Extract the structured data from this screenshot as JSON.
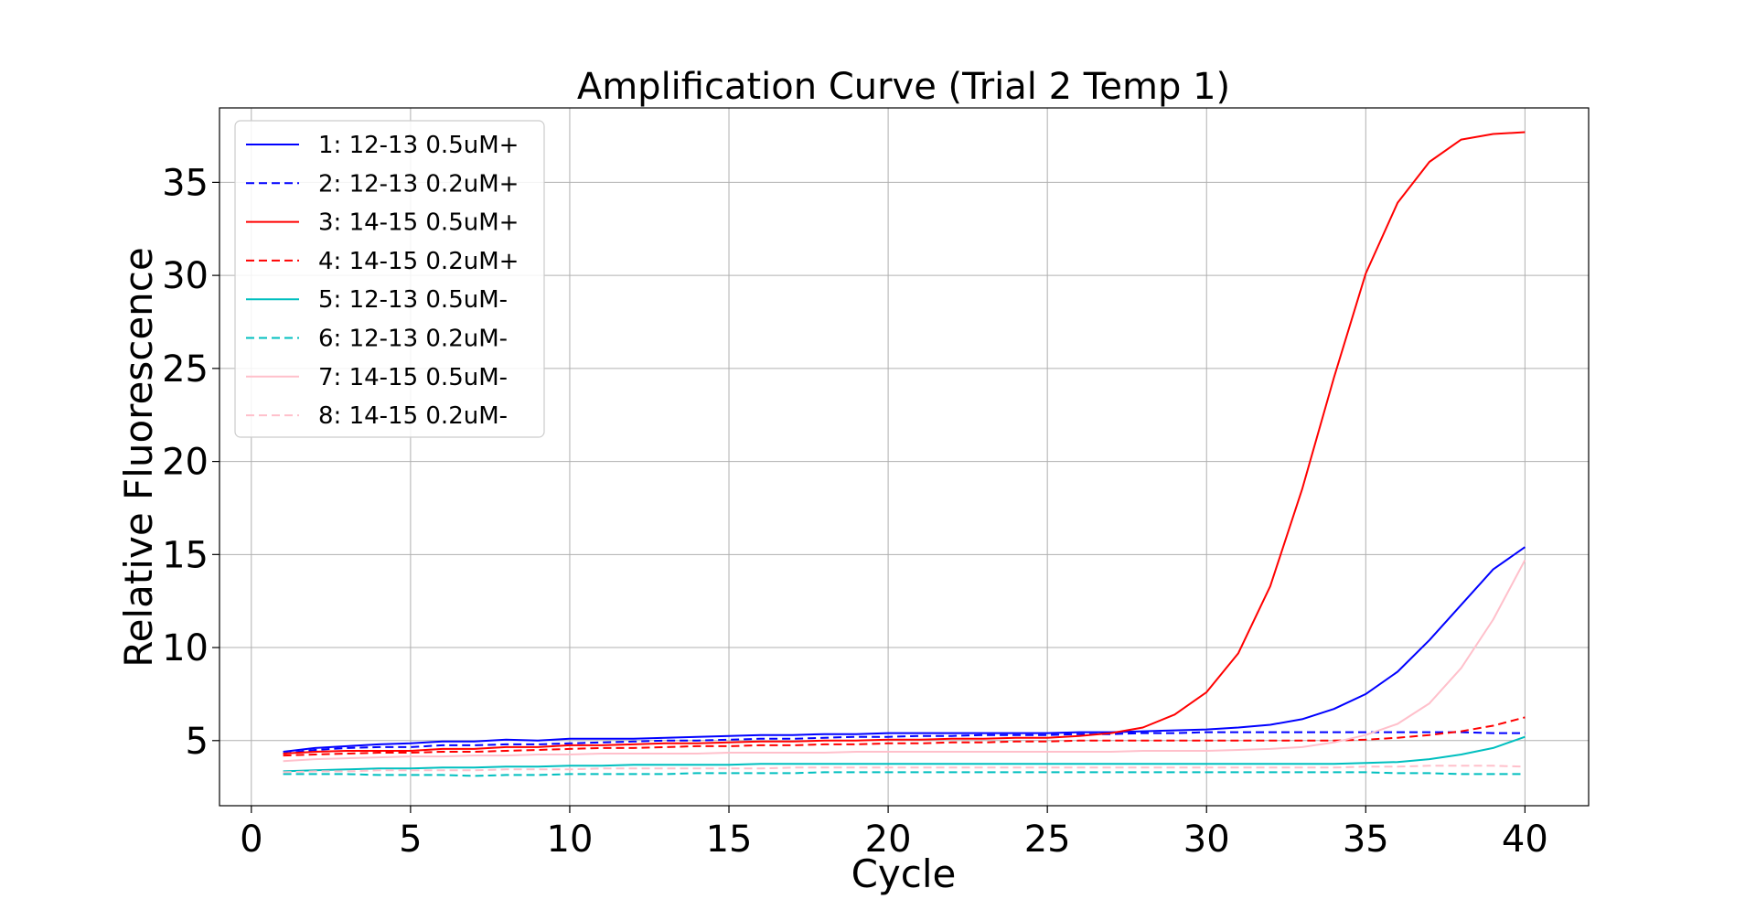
{
  "chart_data": {
    "type": "line",
    "title": "Amplification Curve (Trial 2 Temp 1)",
    "xlabel": "Cycle",
    "ylabel": "Relative Fluorescence",
    "xlim": [
      -1,
      42
    ],
    "ylim": [
      1.5,
      39
    ],
    "xticks": [
      0,
      5,
      10,
      15,
      20,
      25,
      30,
      35,
      40
    ],
    "yticks": [
      5,
      10,
      15,
      20,
      25,
      30,
      35
    ],
    "grid": true,
    "legend_position": "top-left",
    "x": [
      1,
      2,
      3,
      4,
      5,
      6,
      7,
      8,
      9,
      10,
      11,
      12,
      13,
      14,
      15,
      16,
      17,
      18,
      19,
      20,
      21,
      22,
      23,
      24,
      25,
      26,
      27,
      28,
      29,
      30,
      31,
      32,
      33,
      34,
      35,
      36,
      37,
      38,
      39,
      40
    ],
    "series": [
      {
        "name": "1: 12-13 0.5uM+",
        "color": "#0000ff",
        "dash": "solid",
        "values": [
          4.4,
          4.6,
          4.7,
          4.8,
          4.85,
          4.95,
          4.95,
          5.05,
          5.0,
          5.1,
          5.1,
          5.1,
          5.15,
          5.2,
          5.25,
          5.3,
          5.3,
          5.35,
          5.35,
          5.4,
          5.4,
          5.4,
          5.4,
          5.4,
          5.4,
          5.45,
          5.45,
          5.5,
          5.55,
          5.6,
          5.7,
          5.85,
          6.15,
          6.7,
          7.5,
          8.7,
          10.4,
          12.3,
          14.2,
          15.4
        ]
      },
      {
        "name": "2: 12-13 0.2uM+",
        "color": "#0000ff",
        "dash": "dashed",
        "values": [
          4.3,
          4.5,
          4.6,
          4.65,
          4.65,
          4.75,
          4.75,
          4.8,
          4.8,
          4.85,
          4.9,
          4.95,
          5.0,
          5.0,
          5.05,
          5.1,
          5.1,
          5.15,
          5.2,
          5.2,
          5.25,
          5.25,
          5.3,
          5.3,
          5.3,
          5.35,
          5.35,
          5.4,
          5.4,
          5.45,
          5.45,
          5.45,
          5.45,
          5.45,
          5.45,
          5.45,
          5.45,
          5.45,
          5.4,
          5.4
        ]
      },
      {
        "name": "3: 14-15 0.5uM+",
        "color": "#ff0000",
        "dash": "solid",
        "values": [
          4.3,
          4.4,
          4.45,
          4.45,
          4.45,
          4.55,
          4.55,
          4.65,
          4.65,
          4.75,
          4.75,
          4.8,
          4.85,
          4.85,
          4.9,
          4.95,
          4.95,
          5.0,
          5.0,
          5.05,
          5.05,
          5.1,
          5.1,
          5.15,
          5.15,
          5.25,
          5.4,
          5.7,
          6.4,
          7.6,
          9.7,
          13.3,
          18.5,
          24.5,
          30.1,
          33.9,
          36.1,
          37.3,
          37.6,
          37.7
        ]
      },
      {
        "name": "4: 14-15 0.2uM+",
        "color": "#ff0000",
        "dash": "dashed",
        "values": [
          4.2,
          4.25,
          4.3,
          4.35,
          4.35,
          4.4,
          4.4,
          4.45,
          4.5,
          4.55,
          4.6,
          4.6,
          4.65,
          4.7,
          4.7,
          4.75,
          4.75,
          4.8,
          4.8,
          4.85,
          4.85,
          4.9,
          4.9,
          4.95,
          4.95,
          5.0,
          5.0,
          5.0,
          5.0,
          5.0,
          5.0,
          5.0,
          5.0,
          5.0,
          5.05,
          5.15,
          5.3,
          5.5,
          5.8,
          6.25
        ]
      },
      {
        "name": "5: 12-13 0.5uM-",
        "color": "#00bfbf",
        "dash": "solid",
        "values": [
          3.35,
          3.4,
          3.45,
          3.5,
          3.5,
          3.55,
          3.55,
          3.6,
          3.6,
          3.65,
          3.65,
          3.7,
          3.7,
          3.7,
          3.7,
          3.75,
          3.75,
          3.75,
          3.75,
          3.75,
          3.75,
          3.75,
          3.75,
          3.75,
          3.75,
          3.75,
          3.75,
          3.75,
          3.75,
          3.75,
          3.75,
          3.75,
          3.75,
          3.75,
          3.8,
          3.85,
          4.0,
          4.25,
          4.6,
          5.2
        ]
      },
      {
        "name": "6: 12-13 0.2uM-",
        "color": "#00bfbf",
        "dash": "dashed",
        "values": [
          3.2,
          3.2,
          3.2,
          3.15,
          3.15,
          3.15,
          3.1,
          3.15,
          3.15,
          3.2,
          3.2,
          3.2,
          3.2,
          3.25,
          3.25,
          3.25,
          3.25,
          3.3,
          3.3,
          3.3,
          3.3,
          3.3,
          3.3,
          3.3,
          3.3,
          3.3,
          3.3,
          3.3,
          3.3,
          3.3,
          3.3,
          3.3,
          3.3,
          3.3,
          3.3,
          3.25,
          3.25,
          3.2,
          3.2,
          3.2
        ]
      },
      {
        "name": "7: 14-15 0.5uM-",
        "color": "#ffc0cb",
        "dash": "solid",
        "values": [
          3.9,
          4.0,
          4.05,
          4.1,
          4.15,
          4.15,
          4.2,
          4.2,
          4.25,
          4.25,
          4.3,
          4.3,
          4.3,
          4.3,
          4.35,
          4.35,
          4.35,
          4.35,
          4.4,
          4.4,
          4.4,
          4.4,
          4.4,
          4.4,
          4.4,
          4.4,
          4.4,
          4.45,
          4.45,
          4.45,
          4.5,
          4.55,
          4.65,
          4.9,
          5.3,
          5.9,
          7.0,
          8.9,
          11.5,
          14.7
        ]
      },
      {
        "name": "8: 14-15 0.2uM-",
        "color": "#ffc0cb",
        "dash": "dashed",
        "values": [
          3.3,
          3.35,
          3.35,
          3.4,
          3.4,
          3.4,
          3.4,
          3.45,
          3.45,
          3.45,
          3.5,
          3.5,
          3.5,
          3.5,
          3.5,
          3.5,
          3.55,
          3.55,
          3.55,
          3.55,
          3.55,
          3.55,
          3.55,
          3.55,
          3.55,
          3.55,
          3.55,
          3.55,
          3.55,
          3.55,
          3.55,
          3.55,
          3.55,
          3.55,
          3.6,
          3.6,
          3.65,
          3.65,
          3.65,
          3.6
        ]
      }
    ]
  }
}
